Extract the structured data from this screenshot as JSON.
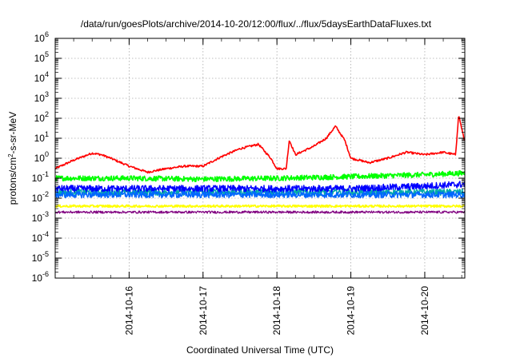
{
  "chart_data": {
    "type": "line",
    "title": "/data/run/goesPlots/archive/2014-10-20/12:00/flux/../flux/5daysEarthDataFluxes.txt",
    "xlabel": "Coordinated Universal Time (UTC)",
    "ylabel": {
      "base": "protons/cm",
      "sup": "2",
      "rest": "-s-sr-MeV"
    },
    "y_scale": "log",
    "ylim": [
      1e-06,
      1000000.0
    ],
    "y_ticks": [
      {
        "exp": "-6",
        "value": 1e-06
      },
      {
        "exp": "-5",
        "value": 1e-05
      },
      {
        "exp": "-4",
        "value": 0.0001
      },
      {
        "exp": "-3",
        "value": 0.001
      },
      {
        "exp": "-2",
        "value": 0.01
      },
      {
        "exp": "-1",
        "value": 0.1
      },
      {
        "exp": "0",
        "value": 1
      },
      {
        "exp": "1",
        "value": 10
      },
      {
        "exp": "2",
        "value": 100
      },
      {
        "exp": "3",
        "value": 1000
      },
      {
        "exp": "4",
        "value": 10000
      },
      {
        "exp": "5",
        "value": 100000
      },
      {
        "exp": "6",
        "value": 1000000
      }
    ],
    "xlim": [
      "2014-10-15T00:00",
      "2014-10-20T13:00"
    ],
    "x_ticks": [
      "2014-10-16",
      "2014-10-17",
      "2014-10-18",
      "2014-10-19",
      "2014-10-20"
    ],
    "grid": true,
    "legend": "none",
    "series": [
      {
        "color": "#ff0000",
        "x": [
          "2014-10-15T00:00",
          "2014-10-15T06:00",
          "2014-10-15T12:00",
          "2014-10-15T15:00",
          "2014-10-15T18:00",
          "2014-10-16T00:00",
          "2014-10-16T06:00",
          "2014-10-16T12:00",
          "2014-10-16T18:00",
          "2014-10-17T00:00",
          "2014-10-17T06:00",
          "2014-10-17T12:00",
          "2014-10-17T18:00",
          "2014-10-17T22:00",
          "2014-10-18T00:00",
          "2014-10-18T03:00",
          "2014-10-18T04:00",
          "2014-10-18T06:00",
          "2014-10-18T12:00",
          "2014-10-18T16:00",
          "2014-10-18T19:00",
          "2014-10-18T22:00",
          "2014-10-19T00:00",
          "2014-10-19T06:00",
          "2014-10-19T12:00",
          "2014-10-19T18:00",
          "2014-10-20T00:00",
          "2014-10-20T06:00",
          "2014-10-20T10:00",
          "2014-10-20T11:00",
          "2014-10-20T13:00"
        ],
        "values": [
          0.3,
          0.8,
          1.8,
          1.5,
          1.0,
          0.4,
          0.2,
          0.3,
          0.4,
          0.4,
          1.2,
          3.0,
          5.0,
          1.0,
          0.3,
          0.3,
          8.0,
          1.5,
          4.0,
          10,
          40,
          8,
          1.0,
          0.6,
          1.0,
          2.0,
          1.5,
          2.0,
          1.5,
          150,
          6
        ]
      },
      {
        "color": "#00ff00",
        "x": [
          "2014-10-15T00:00",
          "2014-10-16T00:00",
          "2014-10-17T00:00",
          "2014-10-18T00:00",
          "2014-10-19T00:00",
          "2014-10-20T00:00",
          "2014-10-20T13:00"
        ],
        "values": [
          0.1,
          0.1,
          0.09,
          0.1,
          0.12,
          0.15,
          0.18
        ]
      },
      {
        "color": "#00aaaa",
        "x": [
          "2014-10-15T00:00",
          "2014-10-16T00:00",
          "2014-10-17T00:00",
          "2014-10-18T00:00",
          "2014-10-19T00:00",
          "2014-10-20T00:00",
          "2014-10-20T13:00"
        ],
        "values": [
          0.02,
          0.02,
          0.02,
          0.02,
          0.02,
          0.02,
          0.02
        ]
      },
      {
        "color": "#0000ff",
        "x": [
          "2014-10-15T00:00",
          "2014-10-16T00:00",
          "2014-10-17T00:00",
          "2014-10-18T00:00",
          "2014-10-19T00:00",
          "2014-10-20T00:00",
          "2014-10-20T13:00"
        ],
        "values": [
          0.03,
          0.03,
          0.03,
          0.03,
          0.03,
          0.04,
          0.05
        ]
      },
      {
        "color": "#0066ff",
        "x": [
          "2014-10-15T00:00",
          "2014-10-16T00:00",
          "2014-10-17T00:00",
          "2014-10-18T00:00",
          "2014-10-19T00:00",
          "2014-10-20T00:00",
          "2014-10-20T13:00"
        ],
        "values": [
          0.015,
          0.015,
          0.015,
          0.015,
          0.015,
          0.015,
          0.015
        ]
      },
      {
        "color": "#ffff00",
        "x": [
          "2014-10-15T00:00",
          "2014-10-16T00:00",
          "2014-10-17T00:00",
          "2014-10-18T00:00",
          "2014-10-19T00:00",
          "2014-10-20T00:00",
          "2014-10-20T13:00"
        ],
        "values": [
          0.004,
          0.004,
          0.004,
          0.004,
          0.004,
          0.004,
          0.004
        ]
      },
      {
        "color": "#800080",
        "x": [
          "2014-10-15T00:00",
          "2014-10-16T00:00",
          "2014-10-17T00:00",
          "2014-10-18T00:00",
          "2014-10-19T00:00",
          "2014-10-20T00:00",
          "2014-10-20T13:00"
        ],
        "values": [
          0.002,
          0.002,
          0.002,
          0.002,
          0.002,
          0.002,
          0.002
        ]
      }
    ]
  }
}
